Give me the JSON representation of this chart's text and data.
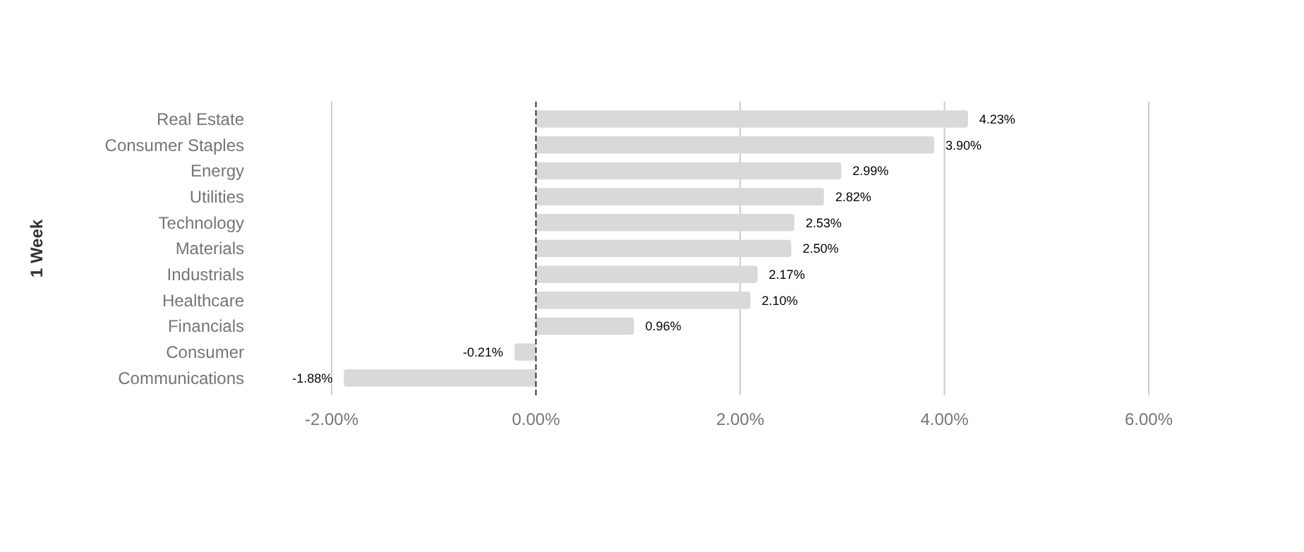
{
  "chart_data": {
    "type": "bar",
    "orientation": "horizontal",
    "ylabel": "1 Week",
    "categories": [
      "Real Estate",
      "Consumer Staples",
      "Energy",
      "Utilities",
      "Technology",
      "Materials",
      "Industrials",
      "Healthcare",
      "Financials",
      "Consumer",
      "Communications"
    ],
    "values": [
      4.23,
      3.9,
      2.99,
      2.82,
      2.53,
      2.5,
      2.17,
      2.1,
      0.96,
      -0.21,
      -1.88
    ],
    "value_labels": [
      "4.23%",
      "3.90%",
      "2.99%",
      "2.82%",
      "2.53%",
      "2.50%",
      "2.17%",
      "2.10%",
      "0.96%",
      "-0.21%",
      "-1.88%"
    ],
    "color": "#d9d9d9",
    "xlim": [
      -2,
      6
    ],
    "xticks": [
      {
        "value": -2,
        "label": "-2.00%"
      },
      {
        "value": 0,
        "label": "0.00%"
      },
      {
        "value": 2,
        "label": "2.00%"
      },
      {
        "value": 4,
        "label": "4.00%"
      },
      {
        "value": 6,
        "label": "6.00%"
      }
    ],
    "ref_lines": [
      {
        "axis": "x",
        "value": 0,
        "color": "#333333",
        "line_style": "dashed"
      }
    ],
    "grid": "x"
  }
}
